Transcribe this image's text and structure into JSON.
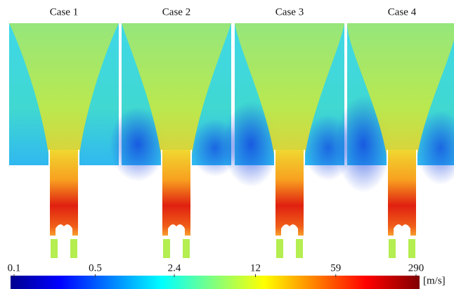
{
  "panels": [
    {
      "title": "Case 1"
    },
    {
      "title": "Case 2"
    },
    {
      "title": "Case 3"
    },
    {
      "title": "Case 4"
    }
  ],
  "colorbar": {
    "ticks": [
      0.1,
      0.5,
      2.4,
      12,
      59,
      290
    ],
    "unit": "[m/s]",
    "scale": "log"
  }
}
